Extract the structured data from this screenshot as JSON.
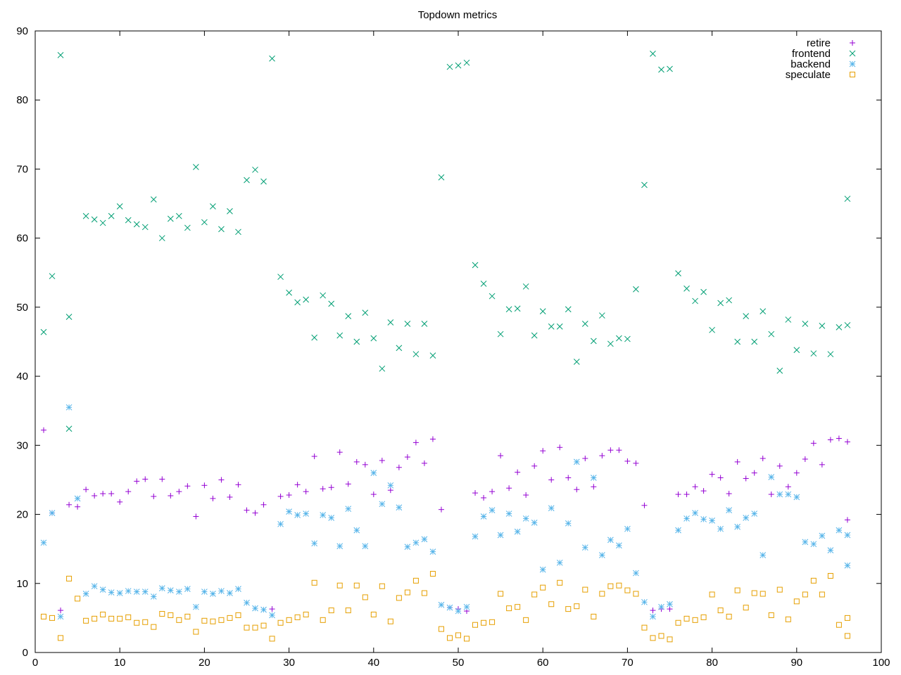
{
  "chart_data": {
    "type": "scatter",
    "title": "Topdown metrics",
    "xlabel": "",
    "ylabel": "",
    "xlim": [
      0,
      100
    ],
    "ylim": [
      0,
      90
    ],
    "x_ticks": [
      0,
      10,
      20,
      30,
      40,
      50,
      60,
      70,
      80,
      90,
      100
    ],
    "y_ticks": [
      0,
      10,
      20,
      30,
      40,
      50,
      60,
      70,
      80,
      90
    ],
    "grid": false,
    "legend_position": "top-right",
    "x": [
      1,
      2,
      3,
      4,
      5,
      6,
      7,
      8,
      9,
      10,
      11,
      12,
      13,
      14,
      15,
      16,
      17,
      18,
      19,
      20,
      21,
      22,
      23,
      24,
      25,
      26,
      27,
      28,
      29,
      30,
      31,
      32,
      33,
      34,
      35,
      36,
      37,
      38,
      39,
      40,
      41,
      42,
      43,
      44,
      45,
      46,
      47,
      48,
      49,
      50,
      51,
      52,
      53,
      54,
      55,
      56,
      57,
      58,
      59,
      60,
      61,
      62,
      63,
      64,
      65,
      66,
      67,
      68,
      69,
      70,
      71,
      72,
      73,
      74,
      75,
      76,
      77,
      78,
      79,
      80,
      81,
      82,
      83,
      84,
      85,
      86,
      87,
      88,
      89,
      90,
      91,
      92,
      93,
      94,
      95,
      96
    ],
    "series": [
      {
        "name": "retire",
        "marker": "plus",
        "color": "#9400d3",
        "values": [
          32.2,
          20.2,
          6.1,
          21.4,
          21.1,
          23.6,
          22.7,
          23.0,
          23.0,
          21.8,
          23.3,
          24.8,
          25.1,
          22.6,
          25.1,
          22.7,
          23.3,
          24.1,
          19.7,
          24.2,
          22.3,
          25.0,
          22.5,
          24.3,
          20.6,
          20.2,
          21.4,
          6.3,
          22.6,
          22.8,
          24.3,
          23.3,
          28.4,
          23.7,
          23.9,
          29.0,
          24.4,
          27.6,
          27.2,
          22.9,
          27.8,
          23.5,
          26.8,
          28.3,
          30.4,
          27.4,
          30.9,
          20.7,
          6.5,
          6.3,
          6.0,
          23.1,
          22.4,
          23.3,
          28.5,
          23.8,
          26.1,
          22.8,
          27.0,
          29.2,
          25.0,
          29.7,
          25.3,
          23.6,
          28.1,
          24.0,
          28.5,
          29.3,
          29.3,
          27.7,
          27.4,
          21.3,
          6.1,
          6.3,
          6.3,
          22.9,
          22.9,
          24.0,
          23.4,
          25.8,
          25.3,
          23.0,
          27.6,
          25.2,
          26.0,
          28.1,
          22.9,
          27.0,
          24.0,
          26.0,
          28.0,
          30.3,
          27.2,
          30.8,
          31.0,
          30.5
        ]
      },
      {
        "name": "frontend",
        "marker": "cross",
        "color": "#009e73",
        "values": [
          46.4,
          54.5,
          86.5,
          48.6,
          null,
          63.2,
          62.7,
          62.2,
          63.2,
          64.6,
          62.6,
          62.0,
          61.6,
          65.6,
          60.0,
          62.8,
          63.2,
          61.5,
          70.3,
          62.3,
          64.6,
          61.3,
          63.9,
          60.9,
          68.4,
          69.9,
          68.2,
          86.0,
          54.4,
          52.1,
          50.7,
          51.1,
          45.6,
          51.7,
          50.5,
          45.9,
          48.7,
          45.0,
          49.2,
          45.5,
          41.1,
          47.8,
          44.1,
          47.6,
          43.2,
          47.6,
          43.0,
          68.8,
          84.8,
          85.0,
          85.4,
          56.1,
          53.4,
          51.6,
          46.1,
          49.7,
          49.8,
          53.0,
          45.9,
          49.4,
          47.2,
          47.2,
          49.7,
          42.1,
          47.6,
          45.1,
          48.8,
          44.7,
          45.5,
          45.4,
          52.6,
          67.7,
          86.7,
          84.4,
          84.5,
          54.9,
          52.7,
          50.9,
          52.2,
          46.7,
          50.6,
          51.0,
          45.0,
          48.7,
          45.0,
          49.4,
          46.1,
          40.8,
          48.2,
          43.8,
          47.6,
          43.3,
          47.3,
          43.2,
          47.1,
          47.4
        ]
      },
      {
        "name": "backend",
        "marker": "asterisk",
        "color": "#56b4e9",
        "values": [
          15.9,
          20.2,
          5.2,
          35.5,
          22.3,
          8.5,
          9.6,
          9.1,
          8.7,
          8.6,
          8.9,
          8.8,
          8.8,
          8.1,
          9.3,
          9.0,
          8.8,
          9.2,
          6.6,
          8.8,
          8.5,
          8.9,
          8.6,
          9.2,
          7.2,
          6.4,
          6.2,
          5.4,
          18.6,
          20.4,
          19.9,
          20.1,
          15.8,
          19.9,
          19.5,
          15.4,
          20.8,
          17.7,
          15.4,
          26.0,
          21.5,
          24.2,
          21.0,
          15.3,
          15.9,
          16.4,
          14.6,
          6.9,
          6.5,
          6.0,
          6.6,
          16.8,
          19.7,
          20.6,
          17.0,
          20.1,
          17.5,
          19.4,
          18.8,
          12.0,
          20.9,
          13.0,
          18.7,
          27.6,
          15.2,
          25.3,
          14.1,
          16.3,
          15.5,
          17.9,
          11.5,
          7.3,
          5.2,
          6.6,
          7.0,
          17.7,
          19.4,
          20.2,
          19.3,
          19.1,
          17.9,
          20.6,
          18.2,
          19.5,
          20.1,
          14.1,
          25.4,
          22.9,
          22.9,
          22.5,
          16.0,
          15.7,
          16.9,
          14.8,
          17.7,
          17.0
        ]
      },
      {
        "name": "speculate",
        "marker": "square",
        "color": "#e69f00",
        "values": [
          5.2,
          5.0,
          2.1,
          10.7,
          7.8,
          4.6,
          4.9,
          5.5,
          4.9,
          4.9,
          5.1,
          4.3,
          4.4,
          3.7,
          5.6,
          5.4,
          4.7,
          5.2,
          3.0,
          4.6,
          4.5,
          4.7,
          5.0,
          5.4,
          3.6,
          3.6,
          3.9,
          2.0,
          4.3,
          4.7,
          5.1,
          5.5,
          10.1,
          4.7,
          6.1,
          9.7,
          6.1,
          9.7,
          8.0,
          5.5,
          9.6,
          4.5,
          7.9,
          8.7,
          10.4,
          8.6,
          11.4,
          3.4,
          2.1,
          2.5,
          2.0,
          4.0,
          4.3,
          4.4,
          8.5,
          6.4,
          6.6,
          4.7,
          8.4,
          9.4,
          7.0,
          10.1,
          6.3,
          6.7,
          9.1,
          5.2,
          8.5,
          9.6,
          9.7,
          9.0,
          8.5,
          3.6,
          2.1,
          2.4,
          1.9,
          4.3,
          4.9,
          4.7,
          5.1,
          8.4,
          6.1,
          5.2,
          9.0,
          6.5,
          8.6,
          8.5,
          5.4,
          9.1,
          4.8,
          7.4,
          8.4,
          10.4,
          8.4,
          11.1,
          4.0,
          5.0
        ]
      }
    ],
    "extra_points": [
      {
        "series": "frontend",
        "x": 4,
        "y": 32.4
      },
      {
        "series": "speculate",
        "x": 96,
        "y": 2.4
      },
      {
        "series": "retire",
        "x": 96,
        "y": 19.2
      },
      {
        "series": "frontend",
        "x": 96,
        "y": 65.7
      },
      {
        "series": "backend",
        "x": 96,
        "y": 12.6
      }
    ]
  }
}
